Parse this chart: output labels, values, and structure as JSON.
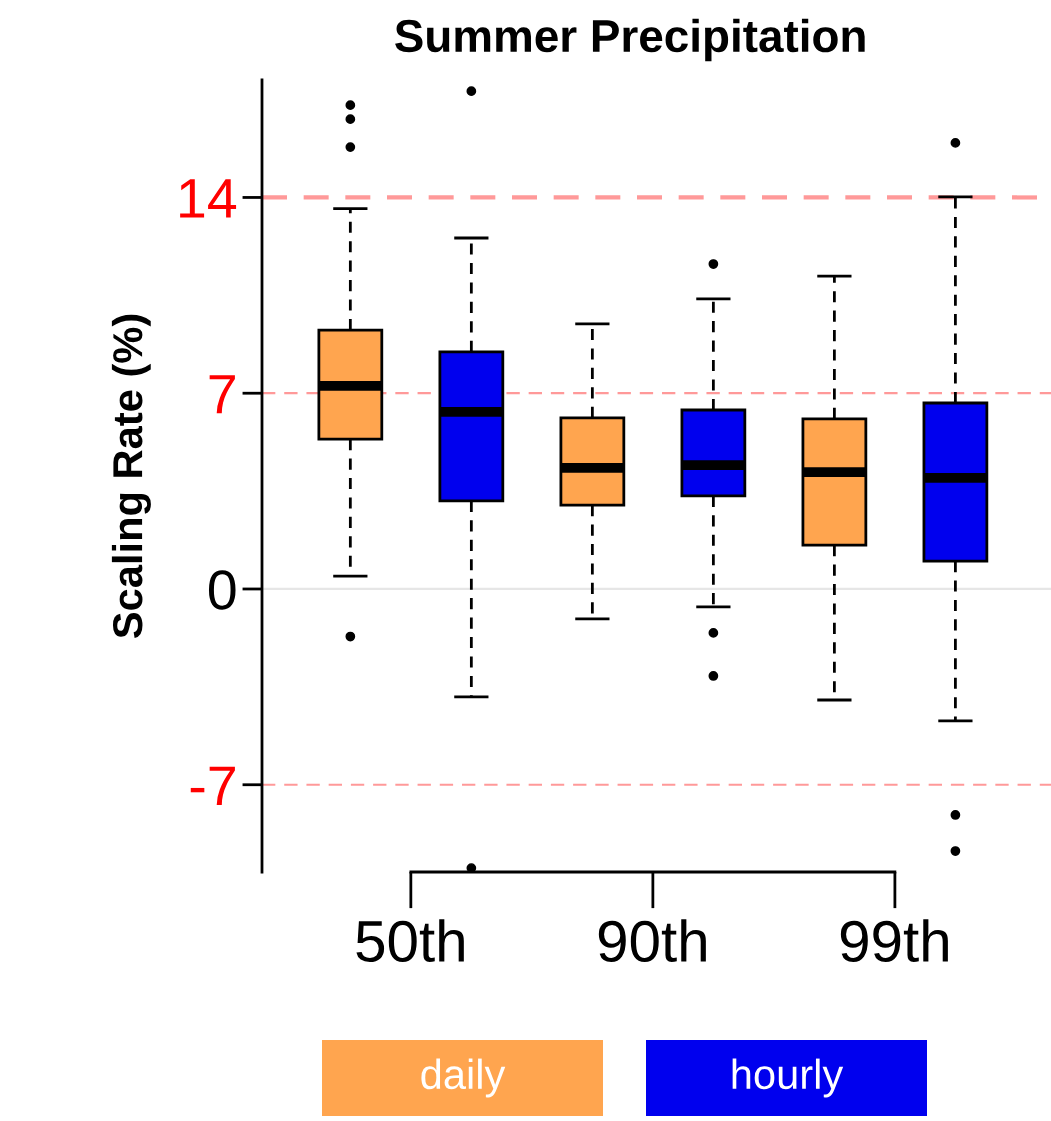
{
  "chart_data": {
    "type": "box",
    "title": "Summer Precipitation",
    "ylabel": "Scaling Rate (%)",
    "categories": [
      "50th",
      "90th",
      "99th"
    ],
    "ylim": [
      -10.12,
      18.2
    ],
    "yticks": [
      -7,
      0,
      7,
      14
    ],
    "series": [
      {
        "name": "daily",
        "color": "#ffa54f",
        "boxes": [
          {
            "low": 0.46,
            "q1": 5.36,
            "median": 7.26,
            "q3": 9.26,
            "high": 13.6,
            "outliers": [
              17.3,
              16.8,
              15.8,
              -1.7
            ]
          },
          {
            "low": -1.07,
            "q1": 3.0,
            "median": 4.33,
            "q3": 6.12,
            "high": 9.48
          },
          {
            "low": -3.97,
            "q1": 1.57,
            "median": 4.18,
            "q3": 6.08,
            "high": 11.19
          }
        ]
      },
      {
        "name": "hourly",
        "color": "#0000ee",
        "boxes": [
          {
            "low": -3.86,
            "q1": 3.15,
            "median": 6.33,
            "q3": 8.48,
            "high": 12.55,
            "outliers": [
              17.8,
              -9.98
            ]
          },
          {
            "low": -0.64,
            "q1": 3.33,
            "median": 4.43,
            "q3": 6.4,
            "high": 10.37,
            "outliers": [
              11.62,
              -1.57,
              -3.11
            ]
          },
          {
            "low": -4.72,
            "q1": 1.0,
            "median": 3.97,
            "q3": 6.65,
            "high": 14.02,
            "outliers": [
              15.95,
              -8.08,
              -9.37
            ]
          }
        ]
      }
    ],
    "ref_lines": [
      {
        "axis": "y",
        "value": 14,
        "color": "#ff9999",
        "line_style": "dashed"
      },
      {
        "axis": "y",
        "value": 7,
        "color": "#ff9999",
        "line_style": "dashed"
      },
      {
        "axis": "y",
        "value": -7,
        "color": "#ff9999",
        "line_style": "dashed"
      },
      {
        "axis": "y",
        "value": 0,
        "color": "#e6e6e6",
        "line_style": "solid"
      }
    ],
    "legend": "bottom",
    "grid": false
  }
}
